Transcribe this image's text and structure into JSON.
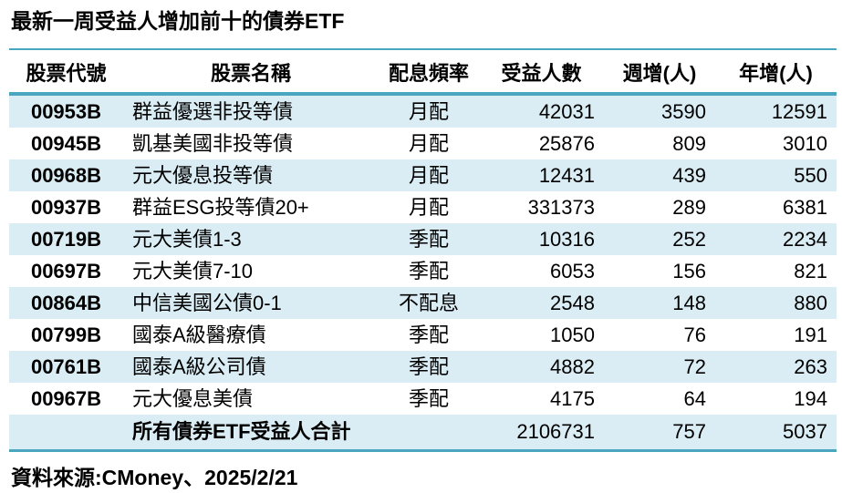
{
  "title": "最新一周受益人增加前十的債券ETF",
  "colors": {
    "accent": "#4aa5bf",
    "row_shade": "#daedf4",
    "text": "#000000"
  },
  "chart_data": {
    "type": "table",
    "title": "最新一周受益人增加前十的債券ETF",
    "columns": [
      "股票代號",
      "股票名稱",
      "配息頻率",
      "受益人數",
      "週增(人)",
      "年增(人)"
    ],
    "rows": [
      {
        "code": "00953B",
        "name": "群益優選非投等債",
        "frequency": "月配",
        "holders": 42031,
        "week_change": 3590,
        "year_change": 12591
      },
      {
        "code": "00945B",
        "name": "凱基美國非投等債",
        "frequency": "月配",
        "holders": 25876,
        "week_change": 809,
        "year_change": 3010
      },
      {
        "code": "00968B",
        "name": "元大優息投等債",
        "frequency": "月配",
        "holders": 12431,
        "week_change": 439,
        "year_change": 550
      },
      {
        "code": "00937B",
        "name": "群益ESG投等債20+",
        "frequency": "月配",
        "holders": 331373,
        "week_change": 289,
        "year_change": 6381
      },
      {
        "code": "00719B",
        "name": "元大美債1-3",
        "frequency": "季配",
        "holders": 10316,
        "week_change": 252,
        "year_change": 2234
      },
      {
        "code": "00697B",
        "name": "元大美債7-10",
        "frequency": "季配",
        "holders": 6053,
        "week_change": 156,
        "year_change": 821
      },
      {
        "code": "00864B",
        "name": "中信美國公債0-1",
        "frequency": "不配息",
        "holders": 2548,
        "week_change": 148,
        "year_change": 880
      },
      {
        "code": "00799B",
        "name": "國泰A級醫療債",
        "frequency": "季配",
        "holders": 1050,
        "week_change": 76,
        "year_change": 191
      },
      {
        "code": "00761B",
        "name": "國泰A級公司債",
        "frequency": "季配",
        "holders": 4882,
        "week_change": 72,
        "year_change": 263
      },
      {
        "code": "00967B",
        "name": "元大優息美債",
        "frequency": "季配",
        "holders": 4175,
        "week_change": 64,
        "year_change": 194
      }
    ],
    "total_row": {
      "label": "所有債券ETF受益人合計",
      "holders": 2106731,
      "week_change": 757,
      "year_change": 5037
    },
    "source": "資料來源:CMoney、2025/2/21"
  }
}
